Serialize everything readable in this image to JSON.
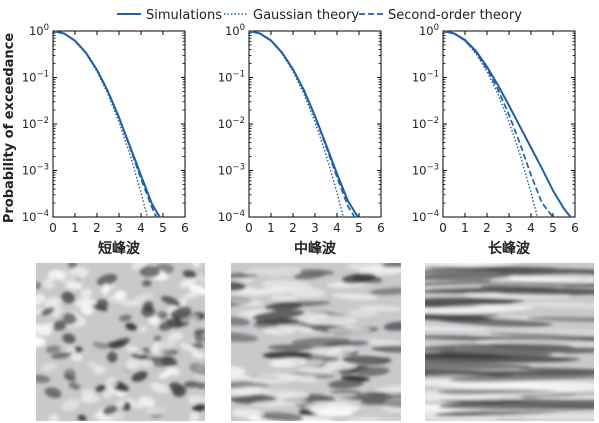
{
  "legend": {
    "placement": "top-center",
    "entries": [
      {
        "label": "Simulations",
        "dash": "solid"
      },
      {
        "label": "Gaussian theory",
        "dash": "dotted"
      },
      {
        "label": "Second-order theory",
        "dash": "dashed"
      }
    ]
  },
  "ylabel": "Probability of exceedance",
  "colors": {
    "line": "#1f5fa4",
    "axis": "#000000"
  },
  "chart_data": [
    {
      "type": "line",
      "panel_label": "短峰波",
      "xlim": [
        0,
        6
      ],
      "ylim": [
        0.0001,
        1
      ],
      "yscale": "log",
      "x_ticks": [
        0,
        1,
        2,
        3,
        4,
        5,
        6
      ],
      "y_ticks": [
        {
          "value": 1,
          "exp": "0"
        },
        {
          "value": 0.1,
          "exp": "−1"
        },
        {
          "value": 0.01,
          "exp": "−2"
        },
        {
          "value": 0.001,
          "exp": "−3"
        },
        {
          "value": 0.0001,
          "exp": "−4"
        }
      ],
      "series": [
        {
          "name": "Simulations",
          "x": [
            0,
            0.5,
            1,
            1.5,
            2,
            2.5,
            3,
            3.5,
            4,
            4.5,
            4.85
          ],
          "y": [
            1,
            0.885,
            0.62,
            0.34,
            0.145,
            0.05,
            0.0138,
            0.0033,
            0.00078,
            0.00019,
            0.0001
          ]
        },
        {
          "name": "Gaussian theory",
          "x": [
            0,
            0.5,
            1,
            1.5,
            2,
            2.5,
            3,
            3.5,
            4,
            4.29
          ],
          "y": [
            1,
            0.8825,
            0.6065,
            0.3247,
            0.1353,
            0.0439,
            0.0111,
            0.0022,
            0.000335,
            0.0001
          ]
        },
        {
          "name": "Second-order theory",
          "x": [
            0,
            0.5,
            1,
            1.5,
            2,
            2.5,
            3,
            3.5,
            4,
            4.5,
            4.7
          ],
          "y": [
            1,
            0.885,
            0.62,
            0.34,
            0.145,
            0.05,
            0.0138,
            0.0031,
            0.00066,
            0.00016,
            0.0001
          ]
        }
      ]
    },
    {
      "type": "line",
      "panel_label": "中峰波",
      "xlim": [
        0,
        6
      ],
      "ylim": [
        0.0001,
        1
      ],
      "yscale": "log",
      "x_ticks": [
        0,
        1,
        2,
        3,
        4,
        5,
        6
      ],
      "y_ticks": [
        {
          "value": 1,
          "exp": "0"
        },
        {
          "value": 0.1,
          "exp": "−1"
        },
        {
          "value": 0.01,
          "exp": "−2"
        },
        {
          "value": 0.001,
          "exp": "−3"
        },
        {
          "value": 0.0001,
          "exp": "−4"
        }
      ],
      "series": [
        {
          "name": "Simulations",
          "x": [
            0,
            0.5,
            1,
            1.5,
            2,
            2.5,
            3,
            3.5,
            4,
            4.5,
            4.95
          ],
          "y": [
            1,
            0.885,
            0.625,
            0.345,
            0.15,
            0.053,
            0.0148,
            0.0036,
            0.00085,
            0.00022,
            0.0001
          ]
        },
        {
          "name": "Gaussian theory",
          "x": [
            0,
            0.5,
            1,
            1.5,
            2,
            2.5,
            3,
            3.5,
            4,
            4.29
          ],
          "y": [
            1,
            0.8825,
            0.6065,
            0.3247,
            0.1353,
            0.0439,
            0.0111,
            0.0022,
            0.000335,
            0.0001
          ]
        },
        {
          "name": "Second-order theory",
          "x": [
            0,
            0.5,
            1,
            1.5,
            2,
            2.5,
            3,
            3.5,
            4,
            4.5,
            4.8
          ],
          "y": [
            1,
            0.885,
            0.622,
            0.343,
            0.148,
            0.052,
            0.0143,
            0.0033,
            0.00072,
            0.00017,
            0.0001
          ]
        }
      ]
    },
    {
      "type": "line",
      "panel_label": "长峰波",
      "xlim": [
        0,
        6
      ],
      "ylim": [
        0.0001,
        1
      ],
      "yscale": "log",
      "x_ticks": [
        0,
        1,
        2,
        3,
        4,
        5,
        6
      ],
      "y_ticks": [
        {
          "value": 1,
          "exp": "0"
        },
        {
          "value": 0.1,
          "exp": "−1"
        },
        {
          "value": 0.01,
          "exp": "−2"
        },
        {
          "value": 0.001,
          "exp": "−3"
        },
        {
          "value": 0.0001,
          "exp": "−4"
        }
      ],
      "series": [
        {
          "name": "Simulations",
          "x": [
            0,
            0.5,
            1,
            1.5,
            2,
            2.5,
            3,
            3.5,
            4,
            4.5,
            5,
            5.5,
            5.8
          ],
          "y": [
            1,
            0.89,
            0.64,
            0.37,
            0.17,
            0.068,
            0.025,
            0.0088,
            0.0031,
            0.0011,
            0.00037,
            0.00015,
            0.0001
          ]
        },
        {
          "name": "Gaussian theory",
          "x": [
            0,
            0.5,
            1,
            1.5,
            2,
            2.5,
            3,
            3.5,
            4,
            4.29
          ],
          "y": [
            1,
            0.8825,
            0.6065,
            0.3247,
            0.1353,
            0.0439,
            0.0111,
            0.0022,
            0.000335,
            0.0001
          ]
        },
        {
          "name": "Second-order theory",
          "x": [
            0,
            0.5,
            1,
            1.5,
            2,
            2.5,
            3,
            3.5,
            4,
            4.5,
            5.0
          ],
          "y": [
            1,
            0.885,
            0.625,
            0.348,
            0.152,
            0.055,
            0.0158,
            0.0038,
            0.0008,
            0.0002,
            0.0001
          ]
        }
      ]
    }
  ],
  "wave_images": [
    {
      "label": "短峰波",
      "kind": "short-crested",
      "contrast": 0.85
    },
    {
      "label": "中峰波",
      "kind": "medium-crested",
      "contrast": 0.9
    },
    {
      "label": "长峰波",
      "kind": "long-crested",
      "contrast": 0.9
    }
  ]
}
